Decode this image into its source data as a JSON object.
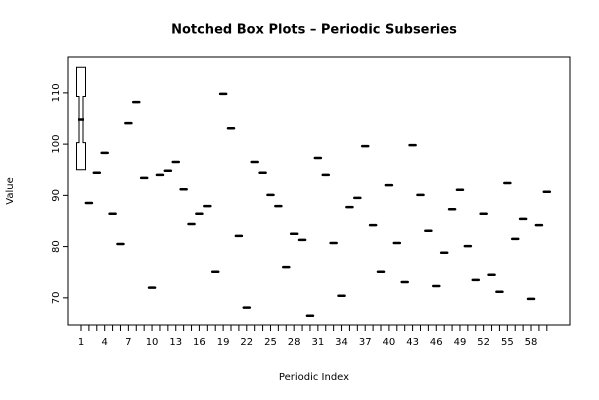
{
  "chart_data": {
    "type": "boxplot",
    "title": "Notched Box Plots – Periodic Subseries",
    "x_label": "Periodic Index",
    "y_label": "Value",
    "categories": [
      1,
      null,
      null,
      4,
      null,
      null,
      7,
      null,
      null,
      10,
      null,
      null,
      13,
      null,
      null,
      16,
      null,
      null,
      19,
      null,
      null,
      22,
      null,
      null,
      25,
      null,
      null,
      28,
      null,
      null,
      31,
      null,
      null,
      34,
      null,
      null,
      37,
      null,
      null,
      40,
      null,
      null,
      43,
      null,
      null,
      46,
      null,
      null,
      49,
      null,
      null,
      52,
      null,
      null,
      55,
      null,
      null,
      58,
      null,
      null
    ],
    "boxes": [
      {
        "low": 95,
        "notch_low": 100.3,
        "median": 104.8,
        "notch_high": 109.3,
        "high": 115
      },
      {
        "median": 88.5
      },
      {
        "median": 94.4
      },
      {
        "median": 98.3
      },
      {
        "median": 86.4
      },
      {
        "median": 80.5
      },
      {
        "median": 104.1
      },
      {
        "median": 108.2
      },
      {
        "median": 93.4
      },
      {
        "median": 72.0
      },
      {
        "median": 94.0
      },
      {
        "median": 94.8
      },
      {
        "median": 96.5
      },
      {
        "median": 91.2
      },
      {
        "median": 84.4
      },
      {
        "median": 86.4
      },
      {
        "median": 87.9
      },
      {
        "median": 75.1
      },
      {
        "median": 109.8
      },
      {
        "median": 103.1
      },
      {
        "median": 82.1
      },
      {
        "median": 68.1
      },
      {
        "median": 96.5
      },
      {
        "median": 94.4
      },
      {
        "median": 90.1
      },
      {
        "median": 87.9
      },
      {
        "median": 76.0
      },
      {
        "median": 82.5
      },
      {
        "median": 81.3
      },
      {
        "median": 66.5
      },
      {
        "median": 97.3
      },
      {
        "median": 94.0
      },
      {
        "median": 80.7
      },
      {
        "median": 70.4
      },
      {
        "median": 87.7
      },
      {
        "median": 89.5
      },
      {
        "median": 99.6
      },
      {
        "median": 84.2
      },
      {
        "median": 75.1
      },
      {
        "median": 92.0
      },
      {
        "median": 80.7
      },
      {
        "median": 73.1
      },
      {
        "median": 99.8
      },
      {
        "median": 90.1
      },
      {
        "median": 83.1
      },
      {
        "median": 72.3
      },
      {
        "median": 78.8
      },
      {
        "median": 87.3
      },
      {
        "median": 91.1
      },
      {
        "median": 80.1
      },
      {
        "median": 73.5
      },
      {
        "median": 86.4
      },
      {
        "median": 74.5
      },
      {
        "median": 71.2
      },
      {
        "median": 92.4
      },
      {
        "median": 81.5
      },
      {
        "median": 85.4
      },
      {
        "median": 69.8
      },
      {
        "median": 84.2
      },
      {
        "median": 90.7
      }
    ],
    "ylim": [
      64.7,
      117
    ],
    "yticks": [
      70,
      80,
      90,
      100,
      110
    ],
    "color": "#000000"
  }
}
